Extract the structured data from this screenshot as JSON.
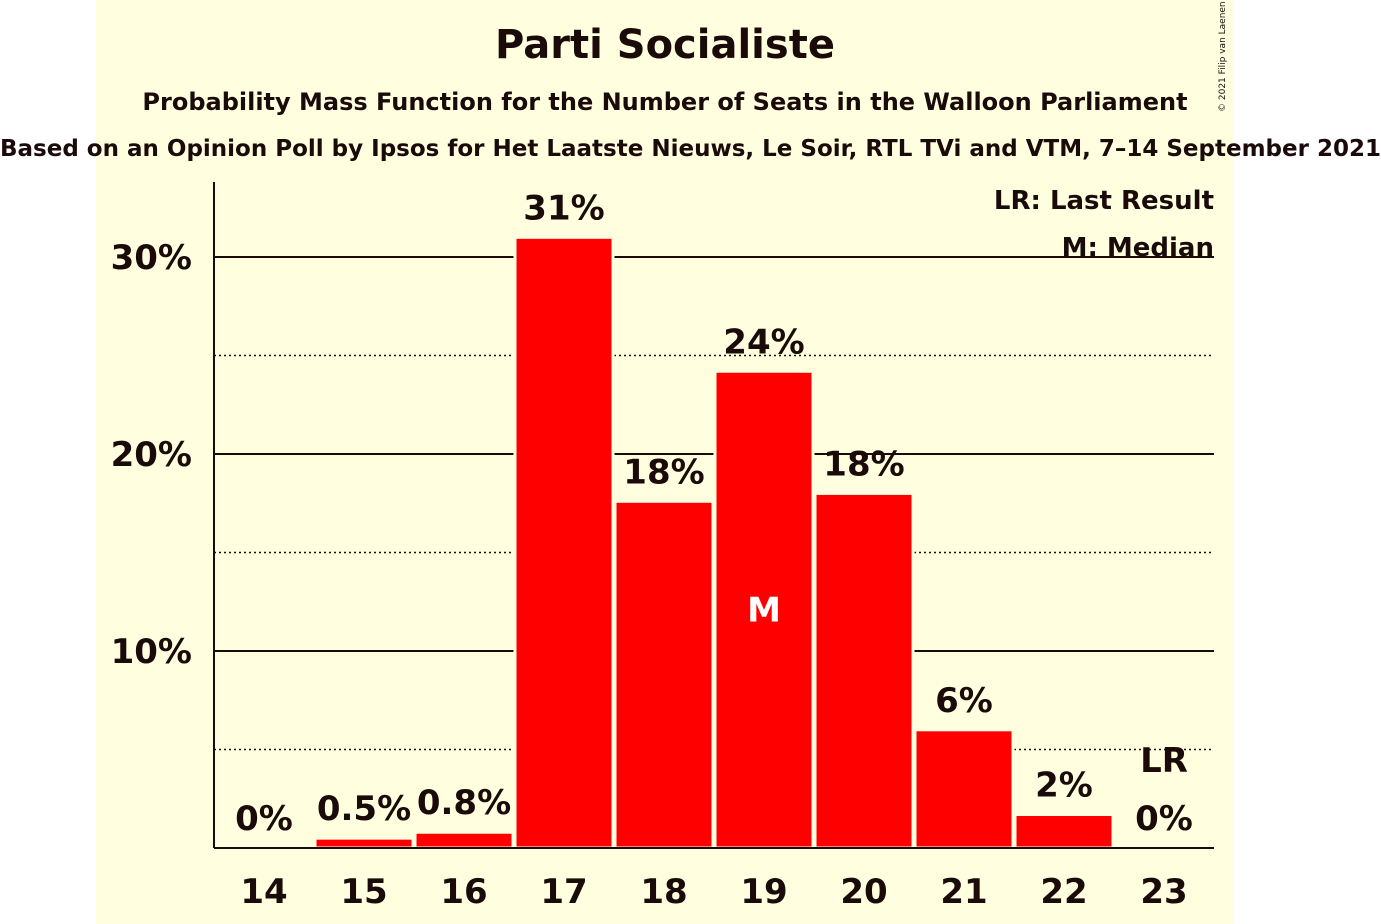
{
  "chart_data": {
    "type": "bar",
    "title": "Parti Socialiste",
    "subtitle": "Probability Mass Function for the Number of Seats in the Walloon Parliament",
    "subsubtitle": "Based on an Opinion Poll by Ipsos for Het Laatste Nieuws, Le Soir, RTL TVi and VTM, 7–14 September 2021",
    "copyright": "© 2021 Filip van Laenen",
    "categories": [
      "14",
      "15",
      "16",
      "17",
      "18",
      "19",
      "20",
      "21",
      "22",
      "23"
    ],
    "values": [
      0.0,
      0.5,
      0.8,
      31.0,
      17.6,
      24.2,
      18.0,
      6.0,
      1.7,
      0.0
    ],
    "value_labels": [
      "0%",
      "0.5%",
      "0.8%",
      "31%",
      "18%",
      "24%",
      "18%",
      "6%",
      "2%",
      "0%"
    ],
    "ylim": [
      0,
      34
    ],
    "yticks": [
      10,
      20,
      30
    ],
    "ytick_labels": [
      "10%",
      "20%",
      "30%"
    ],
    "minor_gridlines": [
      5,
      15,
      25
    ],
    "grid": true,
    "median_category": "19",
    "median_marker": "M",
    "last_result_category": "23",
    "last_result_marker": "LR",
    "legend": {
      "placement": "top-right",
      "entries": [
        "LR: Last Result",
        "M: Median"
      ]
    },
    "colors": {
      "bar": "#ff0000",
      "background": "#ffffe0",
      "text": "#1a0a0a"
    }
  }
}
